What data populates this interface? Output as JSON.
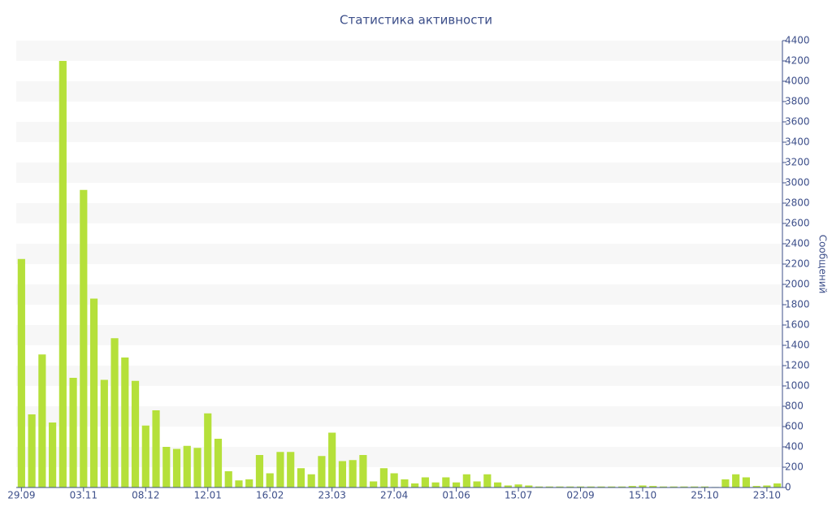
{
  "chart_data": {
    "type": "bar",
    "title": "Статистика активности",
    "y_label": "Сообщений",
    "categories": [
      "29.09",
      null,
      null,
      null,
      null,
      null,
      "03.11",
      null,
      null,
      null,
      null,
      null,
      "08.12",
      null,
      null,
      null,
      null,
      null,
      "12.01",
      null,
      null,
      null,
      null,
      null,
      "16.02",
      null,
      null,
      null,
      null,
      null,
      "23.03",
      null,
      null,
      null,
      null,
      null,
      "27.04",
      null,
      null,
      null,
      null,
      null,
      "01.06",
      null,
      null,
      null,
      null,
      null,
      "15.07",
      null,
      null,
      null,
      null,
      null,
      "02.09",
      null,
      null,
      null,
      null,
      null,
      "15.10",
      null,
      null,
      null,
      null,
      null,
      "25.10",
      null,
      null,
      null,
      null,
      null,
      "23.10",
      null
    ],
    "values": [
      2250,
      720,
      1310,
      640,
      4200,
      1080,
      2930,
      1860,
      1060,
      1470,
      1280,
      1050,
      610,
      760,
      400,
      380,
      410,
      390,
      730,
      480,
      160,
      70,
      80,
      320,
      140,
      350,
      350,
      190,
      130,
      310,
      540,
      260,
      270,
      320,
      60,
      190,
      140,
      80,
      40,
      100,
      50,
      100,
      50,
      130,
      60,
      130,
      50,
      20,
      30,
      20,
      10,
      10,
      10,
      10,
      10,
      10,
      10,
      10,
      10,
      15,
      20,
      15,
      10,
      10,
      10,
      10,
      10,
      5,
      80,
      130,
      100,
      15,
      20,
      40
    ],
    "color": "#b5e03a",
    "band_color": "#f7f7f7",
    "alternate_bands": true,
    "ylim": [
      0,
      4400
    ],
    "yticks": [
      0,
      200,
      400,
      600,
      800,
      1000,
      1200,
      1400,
      1600,
      1800,
      2000,
      2200,
      2400,
      2600,
      2800,
      3000,
      3200,
      3400,
      3600,
      3800,
      4000,
      4200,
      4400
    ]
  }
}
